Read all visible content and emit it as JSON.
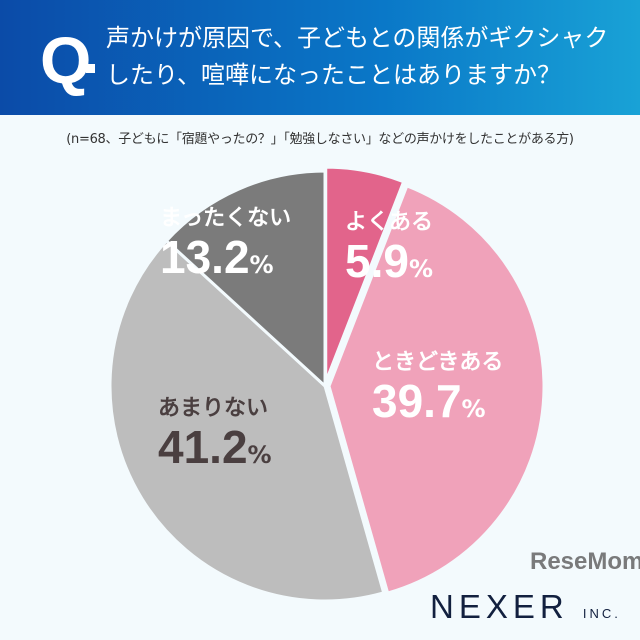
{
  "header": {
    "q": "Q",
    "title_line1": "声かけが原因で、子どもとの関係がギクシャク",
    "title_line2": "したり、喧嘩になったことはありますか？"
  },
  "subtitle": "(n=68、子どもに「宿題やったの？」「勉強しなさい」などの声かけをしたことがある方)",
  "chart_data": {
    "type": "pie",
    "title": "声かけが原因で、子どもとの関係がギクシャクしたり、喧嘩になったことはありますか？",
    "categories": [
      "よくある",
      "ときどきある",
      "あまりない",
      "まったくない"
    ],
    "values": [
      5.9,
      39.7,
      41.2,
      13.2
    ],
    "labels": [
      "5.9",
      "39.7",
      "41.2",
      "13.2"
    ],
    "unit": "%",
    "colors": [
      "#e2648b",
      "#f0a2ba",
      "#bdbdbd",
      "#7b7b7b"
    ],
    "label_colors": [
      "#ffffff",
      "#ffffff",
      "#4a3f40",
      "#ffffff"
    ]
  },
  "logo": {
    "brand": "NEXER",
    "suffix": "INC."
  },
  "watermark": "ReseMom"
}
